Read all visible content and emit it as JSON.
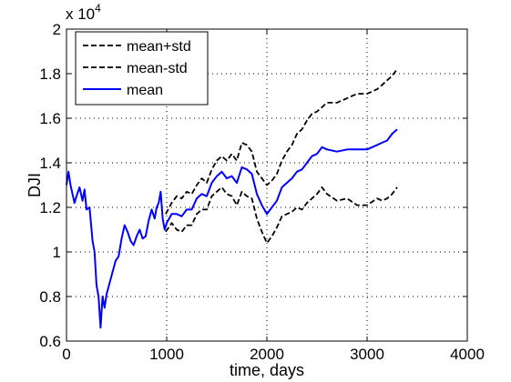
{
  "chart_data": {
    "type": "line",
    "xlabel": "time, days",
    "ylabel": "DJI",
    "xlim": [
      0,
      4000
    ],
    "ylim": [
      0.6,
      2.0
    ],
    "y_multiplier_label": "x 10",
    "y_multiplier_exponent": "4",
    "xticks": [
      0,
      1000,
      2000,
      3000,
      4000
    ],
    "xtick_labels": [
      "0",
      "1000",
      "2000",
      "3000",
      "4000"
    ],
    "yticks": [
      0.6,
      0.8,
      1.0,
      1.2,
      1.4,
      1.6,
      1.8,
      2.0
    ],
    "ytick_labels": [
      "0.6",
      "0.8",
      "1",
      "1.2",
      "1.4",
      "1.6",
      "1.8",
      "2"
    ],
    "grid": true,
    "legend_position": "top-left",
    "series": [
      {
        "name": "mean+std",
        "color": "#000000",
        "style": "dashed",
        "points": [
          [
            990,
            1.17
          ],
          [
            1050,
            1.22
          ],
          [
            1100,
            1.25
          ],
          [
            1150,
            1.24
          ],
          [
            1200,
            1.27
          ],
          [
            1250,
            1.26
          ],
          [
            1300,
            1.3
          ],
          [
            1350,
            1.33
          ],
          [
            1400,
            1.31
          ],
          [
            1450,
            1.37
          ],
          [
            1500,
            1.41
          ],
          [
            1550,
            1.43
          ],
          [
            1600,
            1.41
          ],
          [
            1650,
            1.44
          ],
          [
            1700,
            1.41
          ],
          [
            1750,
            1.49
          ],
          [
            1800,
            1.48
          ],
          [
            1850,
            1.45
          ],
          [
            1900,
            1.36
          ],
          [
            1950,
            1.33
          ],
          [
            2000,
            1.3
          ],
          [
            2050,
            1.32
          ],
          [
            2100,
            1.35
          ],
          [
            2150,
            1.41
          ],
          [
            2200,
            1.45
          ],
          [
            2250,
            1.48
          ],
          [
            2300,
            1.53
          ],
          [
            2350,
            1.55
          ],
          [
            2400,
            1.59
          ],
          [
            2450,
            1.62
          ],
          [
            2500,
            1.63
          ],
          [
            2550,
            1.65
          ],
          [
            2600,
            1.67
          ],
          [
            2700,
            1.67
          ],
          [
            2800,
            1.69
          ],
          [
            2900,
            1.71
          ],
          [
            3000,
            1.71
          ],
          [
            3100,
            1.73
          ],
          [
            3150,
            1.75
          ],
          [
            3200,
            1.77
          ],
          [
            3250,
            1.79
          ],
          [
            3300,
            1.82
          ]
        ]
      },
      {
        "name": "mean-std",
        "color": "#000000",
        "style": "dashed",
        "points": [
          [
            990,
            1.09
          ],
          [
            1050,
            1.13
          ],
          [
            1100,
            1.1
          ],
          [
            1150,
            1.09
          ],
          [
            1200,
            1.12
          ],
          [
            1250,
            1.12
          ],
          [
            1300,
            1.17
          ],
          [
            1350,
            1.19
          ],
          [
            1400,
            1.19
          ],
          [
            1450,
            1.25
          ],
          [
            1500,
            1.27
          ],
          [
            1550,
            1.29
          ],
          [
            1600,
            1.26
          ],
          [
            1650,
            1.25
          ],
          [
            1700,
            1.21
          ],
          [
            1750,
            1.27
          ],
          [
            1800,
            1.25
          ],
          [
            1850,
            1.24
          ],
          [
            1900,
            1.15
          ],
          [
            1950,
            1.09
          ],
          [
            2000,
            1.04
          ],
          [
            2050,
            1.07
          ],
          [
            2100,
            1.11
          ],
          [
            2150,
            1.16
          ],
          [
            2200,
            1.17
          ],
          [
            2250,
            1.18
          ],
          [
            2300,
            1.2
          ],
          [
            2350,
            1.19
          ],
          [
            2400,
            1.22
          ],
          [
            2450,
            1.24
          ],
          [
            2500,
            1.26
          ],
          [
            2550,
            1.29
          ],
          [
            2600,
            1.26
          ],
          [
            2700,
            1.23
          ],
          [
            2800,
            1.24
          ],
          [
            2900,
            1.21
          ],
          [
            3000,
            1.21
          ],
          [
            3100,
            1.24
          ],
          [
            3150,
            1.23
          ],
          [
            3200,
            1.24
          ],
          [
            3250,
            1.26
          ],
          [
            3300,
            1.29
          ]
        ]
      },
      {
        "name": "mean",
        "color": "#0000ff",
        "style": "solid",
        "points": [
          [
            0,
            1.3
          ],
          [
            20,
            1.36
          ],
          [
            40,
            1.3
          ],
          [
            60,
            1.26
          ],
          [
            80,
            1.22
          ],
          [
            100,
            1.25
          ],
          [
            130,
            1.29
          ],
          [
            160,
            1.23
          ],
          [
            180,
            1.28
          ],
          [
            200,
            1.19
          ],
          [
            230,
            1.2
          ],
          [
            260,
            1.05
          ],
          [
            280,
            1.0
          ],
          [
            300,
            0.85
          ],
          [
            320,
            0.8
          ],
          [
            340,
            0.66
          ],
          [
            360,
            0.8
          ],
          [
            380,
            0.75
          ],
          [
            400,
            0.81
          ],
          [
            430,
            0.86
          ],
          [
            460,
            0.91
          ],
          [
            490,
            0.96
          ],
          [
            520,
            0.98
          ],
          [
            550,
            1.06
          ],
          [
            580,
            1.12
          ],
          [
            610,
            1.09
          ],
          [
            640,
            1.05
          ],
          [
            670,
            1.03
          ],
          [
            700,
            1.07
          ],
          [
            730,
            1.1
          ],
          [
            760,
            1.06
          ],
          [
            790,
            1.07
          ],
          [
            820,
            1.14
          ],
          [
            850,
            1.19
          ],
          [
            880,
            1.15
          ],
          [
            900,
            1.2
          ],
          [
            920,
            1.22
          ],
          [
            940,
            1.27
          ],
          [
            960,
            1.15
          ],
          [
            980,
            1.1
          ],
          [
            1000,
            1.13
          ],
          [
            1050,
            1.17
          ],
          [
            1100,
            1.17
          ],
          [
            1150,
            1.16
          ],
          [
            1200,
            1.19
          ],
          [
            1250,
            1.19
          ],
          [
            1300,
            1.24
          ],
          [
            1350,
            1.26
          ],
          [
            1400,
            1.25
          ],
          [
            1450,
            1.31
          ],
          [
            1500,
            1.34
          ],
          [
            1550,
            1.36
          ],
          [
            1600,
            1.33
          ],
          [
            1650,
            1.34
          ],
          [
            1700,
            1.31
          ],
          [
            1750,
            1.38
          ],
          [
            1800,
            1.37
          ],
          [
            1850,
            1.35
          ],
          [
            1900,
            1.26
          ],
          [
            1950,
            1.21
          ],
          [
            2000,
            1.17
          ],
          [
            2050,
            1.2
          ],
          [
            2100,
            1.23
          ],
          [
            2150,
            1.29
          ],
          [
            2200,
            1.31
          ],
          [
            2250,
            1.33
          ],
          [
            2300,
            1.36
          ],
          [
            2350,
            1.37
          ],
          [
            2400,
            1.4
          ],
          [
            2450,
            1.43
          ],
          [
            2500,
            1.44
          ],
          [
            2550,
            1.47
          ],
          [
            2600,
            1.46
          ],
          [
            2700,
            1.45
          ],
          [
            2800,
            1.46
          ],
          [
            2900,
            1.46
          ],
          [
            3000,
            1.46
          ],
          [
            3100,
            1.48
          ],
          [
            3150,
            1.49
          ],
          [
            3200,
            1.5
          ],
          [
            3250,
            1.53
          ],
          [
            3300,
            1.55
          ]
        ]
      }
    ]
  }
}
